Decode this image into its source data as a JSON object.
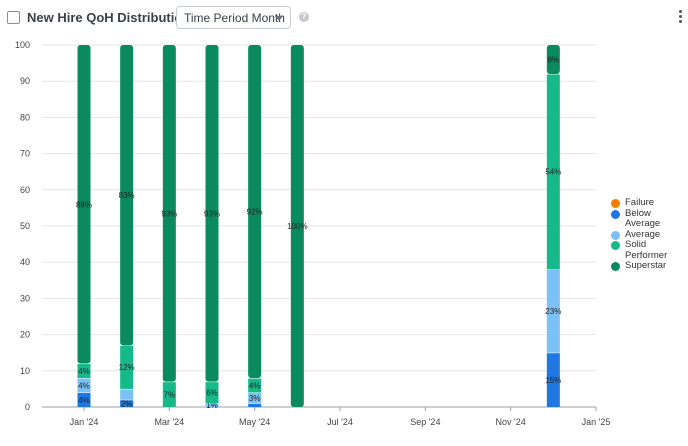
{
  "header": {
    "title": "New Hire QoH Distribution per",
    "select_value": "Time Period Month",
    "help_glyph": "?"
  },
  "colors": {
    "failure": "#f57c00",
    "below_average": "#1e78e0",
    "average": "#7cc1f5",
    "solid_performer": "#16b98a",
    "superstar": "#0b8a5f",
    "grid": "#e6e6e6"
  },
  "chart_data": {
    "type": "bar",
    "stacked": true,
    "ylim": [
      0,
      100
    ],
    "yticks": [
      0,
      10,
      20,
      30,
      40,
      50,
      60,
      70,
      80,
      90,
      100
    ],
    "xticks": [
      "Jan '24",
      "Mar '24",
      "May '24",
      "Jul '24",
      "Sep '24",
      "Nov '24",
      "Jan '25"
    ],
    "legend_position": "right",
    "legend": [
      "Failure",
      "Below Average",
      "Average",
      "Solid Performer",
      "Superstar"
    ],
    "bars": [
      {
        "period": "Jan '24",
        "segments": [
          {
            "series": "Below Average",
            "value": 4,
            "label": "4%"
          },
          {
            "series": "Average",
            "value": 4,
            "label": "4%"
          },
          {
            "series": "Solid Performer",
            "value": 4,
            "label": "4%"
          },
          {
            "series": "Superstar",
            "value": 88,
            "label": "88%"
          }
        ]
      },
      {
        "period": "Feb '24",
        "segments": [
          {
            "series": "Below Average",
            "value": 2,
            "label": "2%"
          },
          {
            "series": "Average",
            "value": 3,
            "label": ""
          },
          {
            "series": "Solid Performer",
            "value": 12,
            "label": "12%"
          },
          {
            "series": "Superstar",
            "value": 83,
            "label": "83%"
          }
        ]
      },
      {
        "period": "Mar '24",
        "segments": [
          {
            "series": "Solid Performer",
            "value": 7,
            "label": "7%"
          },
          {
            "series": "Superstar",
            "value": 93,
            "label": "93%"
          }
        ]
      },
      {
        "period": "Apr '24",
        "segments": [
          {
            "series": "Average",
            "value": 1,
            "label": "1%"
          },
          {
            "series": "Solid Performer",
            "value": 6,
            "label": "6%"
          },
          {
            "series": "Superstar",
            "value": 93,
            "label": "93%"
          }
        ]
      },
      {
        "period": "May '24",
        "segments": [
          {
            "series": "Below Average",
            "value": 1,
            "label": ""
          },
          {
            "series": "Average",
            "value": 3,
            "label": "3%"
          },
          {
            "series": "Solid Performer",
            "value": 4,
            "label": "4%"
          },
          {
            "series": "Superstar",
            "value": 92,
            "label": "92%"
          }
        ]
      },
      {
        "period": "Jun '24",
        "segments": [
          {
            "series": "Superstar",
            "value": 100,
            "label": "100%"
          }
        ]
      },
      {
        "period": "Dec '24",
        "segments": [
          {
            "series": "Below Average",
            "value": 15,
            "label": "15%"
          },
          {
            "series": "Average",
            "value": 23,
            "label": "23%"
          },
          {
            "series": "Solid Performer",
            "value": 54,
            "label": "54%"
          },
          {
            "series": "Superstar",
            "value": 8,
            "label": "8%"
          }
        ]
      }
    ]
  }
}
